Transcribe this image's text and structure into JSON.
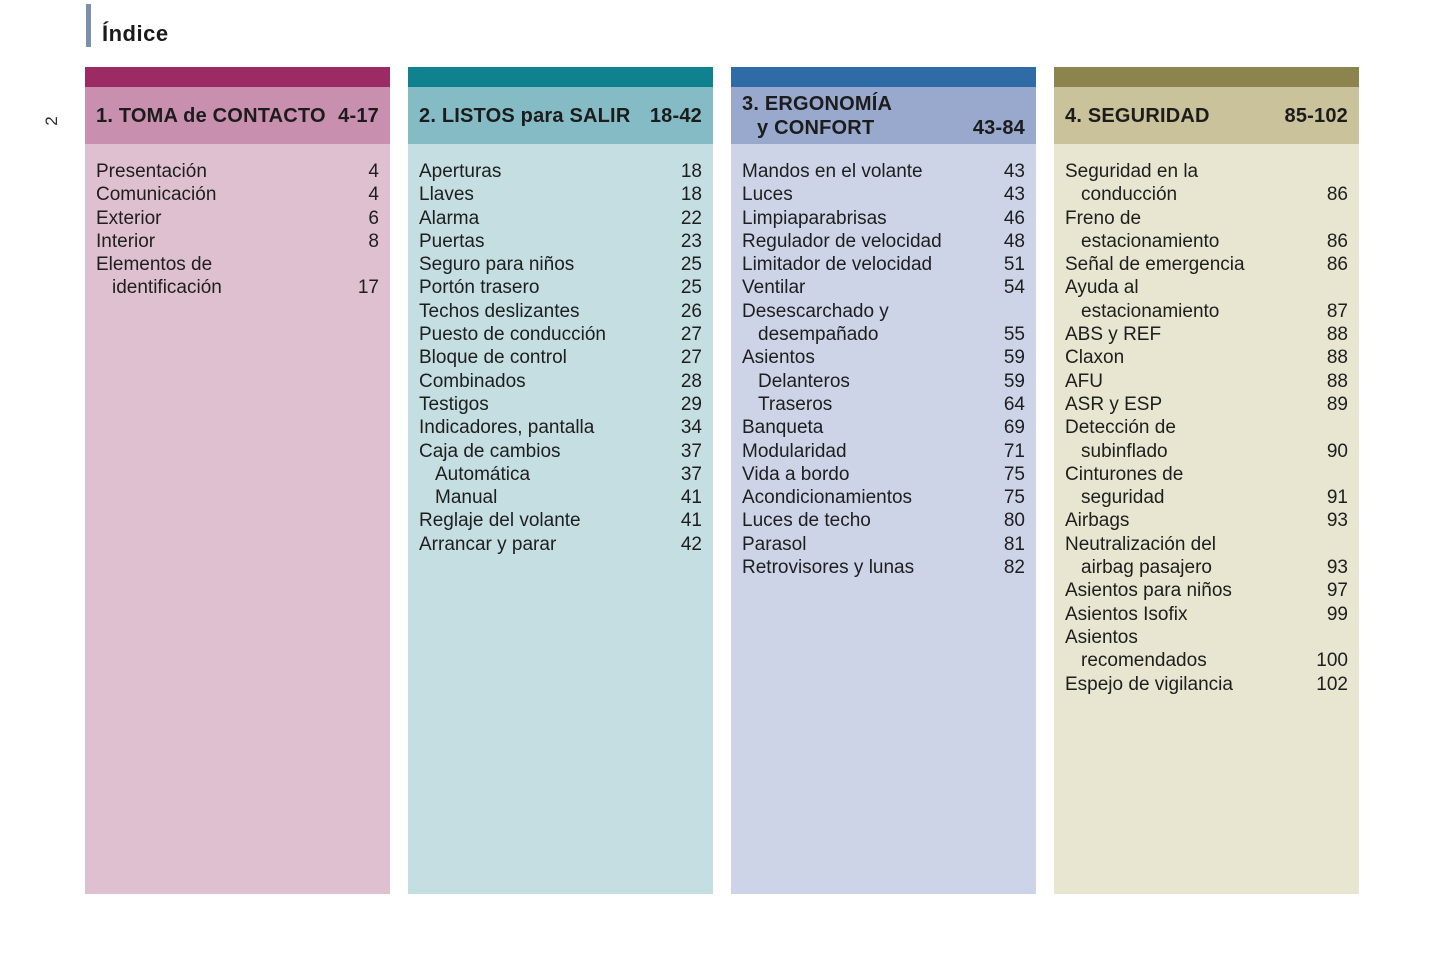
{
  "page": {
    "title": "Índice",
    "number": "2",
    "accent_color": "#7a8eb0"
  },
  "sections": [
    {
      "title_lines": [
        "1. TOMA de CONTACTO"
      ],
      "range": "4-17",
      "colors": {
        "top_bar": "#9b2b62",
        "title_band": "#c98fae",
        "body": "#dfc0d0"
      },
      "items": [
        {
          "lines": [
            "Presentación"
          ],
          "page": "4",
          "sub": false
        },
        {
          "lines": [
            "Comunicación"
          ],
          "page": "4",
          "sub": false
        },
        {
          "lines": [
            "Exterior"
          ],
          "page": "6",
          "sub": false
        },
        {
          "lines": [
            "Interior"
          ],
          "page": "8",
          "sub": false
        },
        {
          "lines": [
            "Elementos de",
            "identificación"
          ],
          "page": "17",
          "sub": false
        }
      ]
    },
    {
      "title_lines": [
        "2. LISTOS para SALIR"
      ],
      "range": "18-42",
      "colors": {
        "top_bar": "#10828f",
        "title_band": "#84bbc5",
        "body": "#c4dee2"
      },
      "items": [
        {
          "lines": [
            "Aperturas"
          ],
          "page": "18",
          "sub": false
        },
        {
          "lines": [
            "Llaves"
          ],
          "page": "18",
          "sub": false
        },
        {
          "lines": [
            "Alarma"
          ],
          "page": "22",
          "sub": false
        },
        {
          "lines": [
            "Puertas"
          ],
          "page": "23",
          "sub": false
        },
        {
          "lines": [
            "Seguro para niños"
          ],
          "page": "25",
          "sub": false
        },
        {
          "lines": [
            "Portón trasero"
          ],
          "page": "25",
          "sub": false
        },
        {
          "lines": [
            "Techos deslizantes"
          ],
          "page": "26",
          "sub": false
        },
        {
          "lines": [
            "Puesto de conducción"
          ],
          "page": "27",
          "sub": false
        },
        {
          "lines": [
            "Bloque de control"
          ],
          "page": "27",
          "sub": false
        },
        {
          "lines": [
            "Combinados"
          ],
          "page": "28",
          "sub": false
        },
        {
          "lines": [
            "Testigos"
          ],
          "page": "29",
          "sub": false
        },
        {
          "lines": [
            "Indicadores, pantalla"
          ],
          "page": "34",
          "sub": false
        },
        {
          "lines": [
            "Caja de cambios"
          ],
          "page": "37",
          "sub": false
        },
        {
          "lines": [
            "Automática"
          ],
          "page": "37",
          "sub": true
        },
        {
          "lines": [
            "Manual"
          ],
          "page": "41",
          "sub": true
        },
        {
          "lines": [
            "Reglaje del volante"
          ],
          "page": "41",
          "sub": false
        },
        {
          "lines": [
            "Arrancar y parar"
          ],
          "page": "42",
          "sub": false
        }
      ]
    },
    {
      "title_lines": [
        "3. ERGONOMÍA",
        "y CONFORT"
      ],
      "range": "43-84",
      "colors": {
        "top_bar": "#2f6ca7",
        "title_band": "#99a9ce",
        "body": "#cdd4e8"
      },
      "items": [
        {
          "lines": [
            "Mandos en el volante"
          ],
          "page": "43",
          "sub": false
        },
        {
          "lines": [
            "Luces"
          ],
          "page": "43",
          "sub": false
        },
        {
          "lines": [
            "Limpiaparabrisas"
          ],
          "page": "46",
          "sub": false
        },
        {
          "lines": [
            "Regulador de velocidad"
          ],
          "page": "48",
          "sub": false
        },
        {
          "lines": [
            "Limitador de velocidad"
          ],
          "page": "51",
          "sub": false
        },
        {
          "lines": [
            "Ventilar"
          ],
          "page": "54",
          "sub": false
        },
        {
          "lines": [
            "Desescarchado y",
            "desempañado"
          ],
          "page": "55",
          "sub": false
        },
        {
          "lines": [
            "Asientos"
          ],
          "page": "59",
          "sub": false
        },
        {
          "lines": [
            "Delanteros"
          ],
          "page": "59",
          "sub": true
        },
        {
          "lines": [
            "Traseros"
          ],
          "page": "64",
          "sub": true
        },
        {
          "lines": [
            "Banqueta"
          ],
          "page": "69",
          "sub": false
        },
        {
          "lines": [
            "Modularidad"
          ],
          "page": "71",
          "sub": false
        },
        {
          "lines": [
            "Vida a bordo"
          ],
          "page": "75",
          "sub": false
        },
        {
          "lines": [
            "Acondicionamientos"
          ],
          "page": "75",
          "sub": false
        },
        {
          "lines": [
            "Luces de techo"
          ],
          "page": "80",
          "sub": false
        },
        {
          "lines": [
            "Parasol"
          ],
          "page": "81",
          "sub": false
        },
        {
          "lines": [
            "Retrovisores y lunas"
          ],
          "page": "82",
          "sub": false
        }
      ]
    },
    {
      "title_lines": [
        "4. SEGURIDAD"
      ],
      "range": "85-102",
      "colors": {
        "top_bar": "#8b854d",
        "title_band": "#cac29b",
        "body": "#e8e5d0"
      },
      "items": [
        {
          "lines": [
            "Seguridad en la",
            "conducción"
          ],
          "page": "86",
          "sub": false
        },
        {
          "lines": [
            "Freno de",
            "estacionamiento"
          ],
          "page": "86",
          "sub": false
        },
        {
          "lines": [
            "Señal de emergencia"
          ],
          "page": "86",
          "sub": false
        },
        {
          "lines": [
            "Ayuda al",
            "estacionamiento"
          ],
          "page": "87",
          "sub": false
        },
        {
          "lines": [
            "ABS y REF"
          ],
          "page": "88",
          "sub": false
        },
        {
          "lines": [
            "Claxon"
          ],
          "page": "88",
          "sub": false
        },
        {
          "lines": [
            "AFU"
          ],
          "page": "88",
          "sub": false
        },
        {
          "lines": [
            "ASR y ESP"
          ],
          "page": "89",
          "sub": false
        },
        {
          "lines": [
            "Detección de",
            "subinflado"
          ],
          "page": "90",
          "sub": false
        },
        {
          "lines": [
            "Cinturones de",
            "seguridad"
          ],
          "page": "91",
          "sub": false
        },
        {
          "lines": [
            "Airbags"
          ],
          "page": "93",
          "sub": false
        },
        {
          "lines": [
            "Neutralización del",
            "airbag pasajero"
          ],
          "page": "93",
          "sub": false
        },
        {
          "lines": [
            "Asientos para niños"
          ],
          "page": "97",
          "sub": false
        },
        {
          "lines": [
            "Asientos Isofix"
          ],
          "page": "99",
          "sub": false
        },
        {
          "lines": [
            "Asientos",
            "recomendados"
          ],
          "page": "100",
          "sub": false
        },
        {
          "lines": [
            "Espejo de vigilancia"
          ],
          "page": "102",
          "sub": false
        }
      ]
    }
  ]
}
